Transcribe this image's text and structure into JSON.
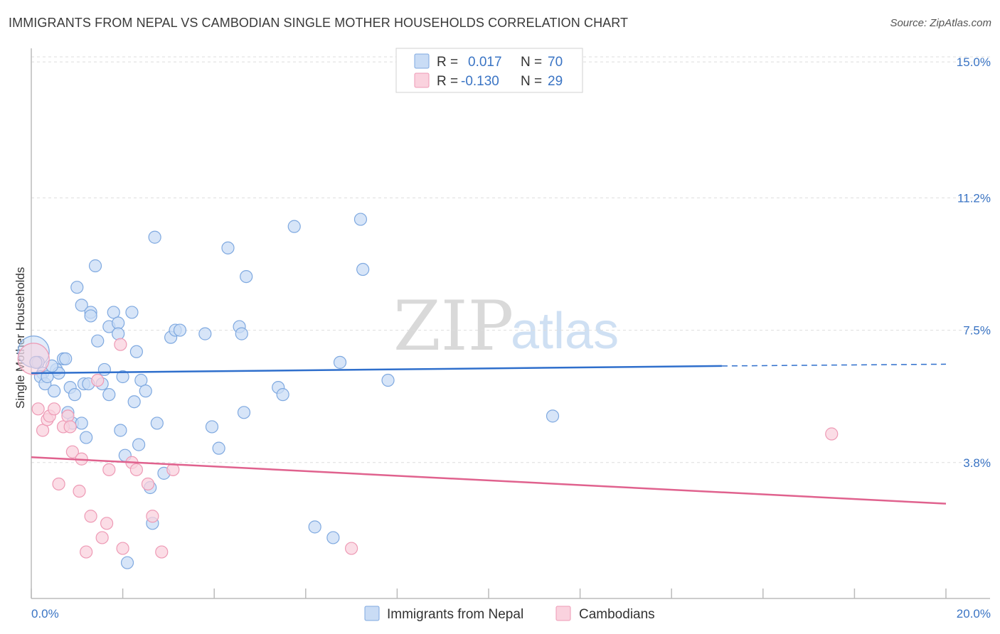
{
  "header": {
    "title": "IMMIGRANTS FROM NEPAL VS CAMBODIAN SINGLE MOTHER HOUSEHOLDS CORRELATION CHART",
    "source": "Source: ZipAtlas.com"
  },
  "watermark": {
    "zip": "ZIP",
    "atlas": "atlas"
  },
  "stats_legend": {
    "rows": [
      {
        "r_label": "R =",
        "r_value": "0.017",
        "n_label": "N =",
        "n_value": "70",
        "color": "#aac8f0"
      },
      {
        "r_label": "R =",
        "r_value": "-0.130",
        "n_label": "N =",
        "n_value": "29",
        "color": "#f7b9cc"
      }
    ]
  },
  "colors": {
    "series1_fill": "#c9dcf5",
    "series1_stroke": "#7fa9e0",
    "series1_line": "#2f6fcc",
    "series2_fill": "#fad2de",
    "series2_stroke": "#ee9ab5",
    "series2_line": "#e0628e",
    "tick_text": "#3a74c4",
    "grid": "#dddddd"
  },
  "chart_data": {
    "type": "scatter",
    "title": "IMMIGRANTS FROM NEPAL VS CAMBODIAN SINGLE MOTHER HOUSEHOLDS CORRELATION CHART",
    "xlabel": "",
    "ylabel": "Single Mother Households",
    "xlim": [
      0,
      20
    ],
    "ylim": [
      0,
      15.5
    ],
    "x_tick_labels": {
      "left": "0.0%",
      "right": "20.0%"
    },
    "y_ticks": [
      {
        "value": 3.8,
        "label": "3.8%"
      },
      {
        "value": 7.5,
        "label": "7.5%"
      },
      {
        "value": 11.2,
        "label": "11.2%"
      },
      {
        "value": 15.0,
        "label": "15.0%"
      }
    ],
    "legend": [
      "Immigrants from Nepal",
      "Cambodians"
    ],
    "series": [
      {
        "name": "Immigrants from Nepal",
        "trend": {
          "x0": 0,
          "y0": 6.3,
          "x1": 15.1,
          "y1": 6.5,
          "dash_to_x": 20,
          "dash_to_y": 6.55
        },
        "points": [
          [
            0.05,
            6.9,
            "large"
          ],
          [
            0.15,
            6.6
          ],
          [
            0.25,
            6.3
          ],
          [
            0.2,
            6.2
          ],
          [
            0.3,
            6.0
          ],
          [
            0.35,
            6.2
          ],
          [
            0.5,
            5.8
          ],
          [
            0.55,
            6.4
          ],
          [
            0.6,
            6.3
          ],
          [
            0.7,
            6.7
          ],
          [
            0.75,
            6.7
          ],
          [
            0.8,
            5.2
          ],
          [
            0.85,
            5.9
          ],
          [
            0.9,
            4.9
          ],
          [
            0.95,
            5.7
          ],
          [
            1.0,
            8.7
          ],
          [
            1.1,
            4.9
          ],
          [
            1.1,
            8.2
          ],
          [
            1.15,
            6.0
          ],
          [
            1.2,
            4.5
          ],
          [
            1.3,
            8.0
          ],
          [
            1.3,
            7.9
          ],
          [
            1.4,
            9.3
          ],
          [
            1.45,
            7.2
          ],
          [
            1.55,
            6.0
          ],
          [
            1.6,
            6.4
          ],
          [
            1.7,
            5.7
          ],
          [
            1.7,
            7.6
          ],
          [
            1.8,
            8.0
          ],
          [
            1.9,
            7.7
          ],
          [
            1.9,
            7.4
          ],
          [
            1.95,
            4.7
          ],
          [
            2.0,
            6.2
          ],
          [
            2.05,
            4.0
          ],
          [
            2.1,
            1.0
          ],
          [
            2.2,
            8.0
          ],
          [
            2.25,
            5.5
          ],
          [
            2.3,
            6.9
          ],
          [
            2.35,
            4.3
          ],
          [
            2.4,
            6.1
          ],
          [
            2.5,
            5.8
          ],
          [
            2.6,
            3.1
          ],
          [
            2.65,
            2.1
          ],
          [
            2.7,
            10.1
          ],
          [
            2.75,
            4.9
          ],
          [
            2.9,
            3.5
          ],
          [
            3.05,
            7.3
          ],
          [
            3.15,
            7.5
          ],
          [
            3.25,
            7.5
          ],
          [
            3.8,
            7.4
          ],
          [
            3.95,
            4.8
          ],
          [
            4.1,
            4.2
          ],
          [
            4.3,
            9.8
          ],
          [
            4.55,
            7.6
          ],
          [
            4.6,
            7.4
          ],
          [
            4.65,
            5.2
          ],
          [
            4.7,
            9.0
          ],
          [
            5.4,
            5.9
          ],
          [
            5.5,
            5.7
          ],
          [
            5.75,
            10.4
          ],
          [
            6.2,
            2.0
          ],
          [
            6.6,
            1.7
          ],
          [
            6.75,
            6.6
          ],
          [
            7.2,
            10.6
          ],
          [
            7.25,
            9.2
          ],
          [
            7.8,
            6.1
          ],
          [
            11.4,
            5.1
          ],
          [
            0.45,
            6.5
          ],
          [
            1.25,
            6.0
          ],
          [
            0.1,
            6.6
          ]
        ]
      },
      {
        "name": "Cambodians",
        "trend": {
          "x0": 0,
          "y0": 3.95,
          "x1": 20,
          "y1": 2.65
        },
        "points": [
          [
            0.05,
            6.7,
            "large"
          ],
          [
            0.15,
            5.3
          ],
          [
            0.25,
            4.7
          ],
          [
            0.35,
            5.0
          ],
          [
            0.4,
            5.1
          ],
          [
            0.5,
            5.3
          ],
          [
            0.6,
            3.2
          ],
          [
            0.7,
            4.8
          ],
          [
            0.8,
            5.1
          ],
          [
            0.85,
            4.8
          ],
          [
            0.9,
            4.1
          ],
          [
            1.05,
            3.0
          ],
          [
            1.1,
            3.9
          ],
          [
            1.2,
            1.3
          ],
          [
            1.3,
            2.3
          ],
          [
            1.45,
            6.1
          ],
          [
            1.55,
            1.7
          ],
          [
            1.65,
            2.1
          ],
          [
            1.7,
            3.6
          ],
          [
            1.95,
            7.1
          ],
          [
            2.0,
            1.4
          ],
          [
            2.2,
            3.8
          ],
          [
            2.3,
            3.6
          ],
          [
            2.55,
            3.2
          ],
          [
            2.65,
            2.3
          ],
          [
            2.85,
            1.3
          ],
          [
            3.1,
            3.6
          ],
          [
            7.0,
            1.4
          ],
          [
            17.5,
            4.6
          ]
        ]
      }
    ]
  },
  "bottom_legend": {
    "items": [
      {
        "label": "Immigrants from Nepal"
      },
      {
        "label": "Cambodians"
      }
    ]
  }
}
